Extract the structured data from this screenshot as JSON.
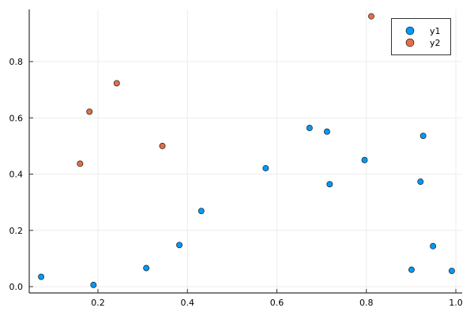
{
  "chart_data": {
    "type": "scatter",
    "title": "",
    "xlabel": "",
    "ylabel": "",
    "xlim": [
      0.047,
      1.015
    ],
    "ylim": [
      -0.022,
      0.985
    ],
    "xticks": [
      0.2,
      0.4,
      0.6,
      0.8,
      1.0
    ],
    "xtick_labels": [
      "0.2",
      "0.4",
      "0.6",
      "0.8",
      "1.0"
    ],
    "yticks": [
      0.0,
      0.2,
      0.4,
      0.6,
      0.8
    ],
    "ytick_labels": [
      "0.0",
      "0.2",
      "0.4",
      "0.6",
      "0.8"
    ],
    "grid": true,
    "legend_position": "top-right",
    "series": [
      {
        "name": "y1",
        "color": "#009AFA",
        "x": [
          0.073,
          0.19,
          0.308,
          0.382,
          0.431,
          0.575,
          0.673,
          0.712,
          0.718,
          0.796,
          0.901,
          0.921,
          0.927,
          0.949,
          0.991
        ],
        "y": [
          0.035,
          0.006,
          0.066,
          0.148,
          0.269,
          0.421,
          0.564,
          0.551,
          0.364,
          0.45,
          0.06,
          0.373,
          0.536,
          0.144,
          0.056
        ]
      },
      {
        "name": "y2",
        "color": "#E36F47",
        "x": [
          0.16,
          0.181,
          0.242,
          0.344,
          0.811
        ],
        "y": [
          0.437,
          0.622,
          0.723,
          0.5,
          0.961
        ]
      }
    ]
  },
  "legend": {
    "items": [
      {
        "label": "y1",
        "color": "#009AFA"
      },
      {
        "label": "y2",
        "color": "#E36F47"
      }
    ]
  }
}
